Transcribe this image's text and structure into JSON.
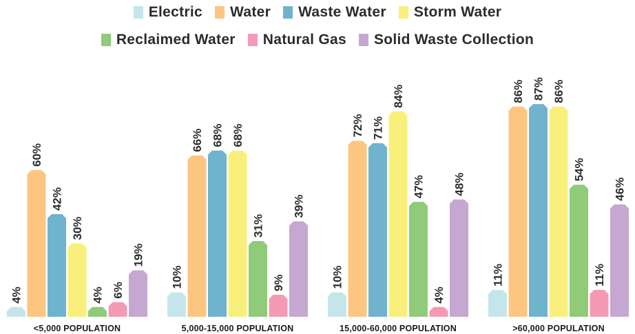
{
  "chart_data": {
    "type": "bar",
    "title": "",
    "xlabel": "",
    "ylabel": "",
    "ylim": [
      0,
      100
    ],
    "grid": false,
    "legend_position": "top-center",
    "categories": [
      "<5,000 POPULATION",
      "5,000-15,000 POPULATION",
      "15,000-60,000 POPULATION",
      ">60,000 POPULATION"
    ],
    "series": [
      {
        "name": "Electric",
        "color": "#c4e6ea",
        "values": [
          4,
          10,
          10,
          11
        ],
        "labels": [
          "4%",
          "10%",
          "10%",
          "11%"
        ]
      },
      {
        "name": "Water",
        "color": "#fcc681",
        "values": [
          60,
          66,
          72,
          86
        ],
        "labels": [
          "60%",
          "66%",
          "72%",
          "86%"
        ]
      },
      {
        "name": "Waste Water",
        "color": "#6fb3cd",
        "values": [
          42,
          68,
          71,
          87
        ],
        "labels": [
          "42%",
          "68%",
          "71%",
          "87%"
        ]
      },
      {
        "name": "Storm Water",
        "color": "#f8f07a",
        "values": [
          30,
          68,
          84,
          86
        ],
        "labels": [
          "30%",
          "68%",
          "84%",
          "86%"
        ]
      },
      {
        "name": "Reclaimed Water",
        "color": "#8fcb78",
        "values": [
          4,
          31,
          47,
          54
        ],
        "labels": [
          "4%",
          "31%",
          "47%",
          "54%"
        ]
      },
      {
        "name": "Natural Gas",
        "color": "#f59ab5",
        "values": [
          6,
          9,
          4,
          11
        ],
        "labels": [
          "6%",
          "9%",
          "4%",
          "11%"
        ]
      },
      {
        "name": "Solid Waste Collection",
        "color": "#c5a7d1",
        "values": [
          19,
          39,
          48,
          46
        ],
        "labels": [
          "19%",
          "39%",
          "48%",
          "46%"
        ]
      }
    ]
  }
}
